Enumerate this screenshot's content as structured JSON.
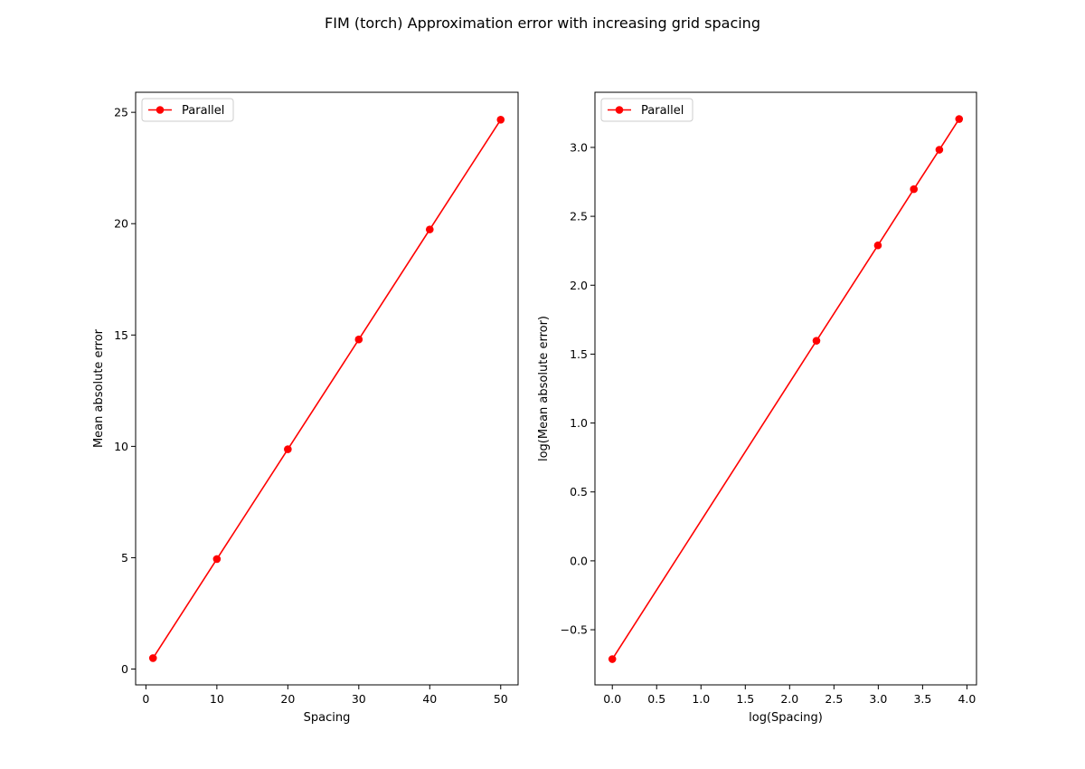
{
  "figure_title": "FIM (torch) Approximation error with increasing grid spacing",
  "chart_data": [
    {
      "type": "line",
      "xlabel": "Spacing",
      "ylabel": "Mean absolute error",
      "xlim": [
        -1.45,
        52.45
      ],
      "ylim": [
        -0.71,
        25.9
      ],
      "xticks": [
        0,
        10,
        20,
        30,
        40,
        50
      ],
      "xtick_labels": [
        "0",
        "10",
        "20",
        "30",
        "40",
        "50"
      ],
      "yticks": [
        0,
        5,
        10,
        15,
        20,
        25
      ],
      "ytick_labels": [
        "0",
        "5",
        "10",
        "15",
        "20",
        "25"
      ],
      "grid": false,
      "legend_position": "upper-left",
      "series": [
        {
          "name": "Parallel",
          "color": "#ff0000",
          "marker": "circle",
          "x": [
            1,
            10,
            20,
            30,
            40,
            50
          ],
          "y": [
            0.49,
            4.94,
            9.87,
            14.8,
            19.74,
            24.67
          ]
        }
      ]
    },
    {
      "type": "line",
      "xlabel": "log(Spacing)",
      "ylabel": "log(Mean absolute error)",
      "xlim": [
        -0.196,
        4.108
      ],
      "ylim": [
        -0.9,
        3.4
      ],
      "xticks": [
        0.0,
        0.5,
        1.0,
        1.5,
        2.0,
        2.5,
        3.0,
        3.5,
        4.0
      ],
      "xtick_labels": [
        "0.0",
        "0.5",
        "1.0",
        "1.5",
        "2.0",
        "2.5",
        "3.0",
        "3.5",
        "4.0"
      ],
      "yticks": [
        -0.5,
        0.0,
        0.5,
        1.0,
        1.5,
        2.0,
        2.5,
        3.0
      ],
      "ytick_labels": [
        "−0.5",
        "0.0",
        "0.5",
        "1.0",
        "1.5",
        "2.0",
        "2.5",
        "3.0"
      ],
      "grid": false,
      "legend_position": "upper-left",
      "series": [
        {
          "name": "Parallel",
          "color": "#ff0000",
          "marker": "circle",
          "x": [
            0.0,
            2.3026,
            2.9957,
            3.4012,
            3.6889,
            3.912
          ],
          "y": [
            -0.713,
            1.597,
            2.289,
            2.697,
            2.983,
            3.206
          ]
        }
      ]
    }
  ]
}
